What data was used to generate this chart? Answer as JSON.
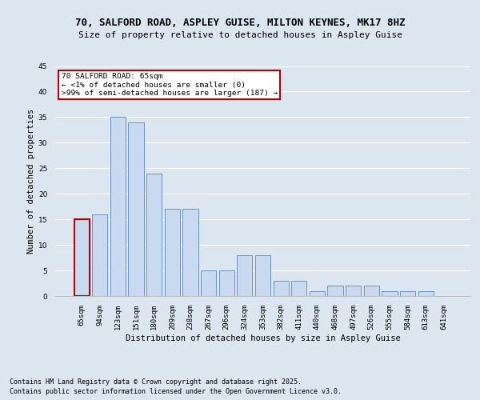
{
  "title1": "70, SALFORD ROAD, ASPLEY GUISE, MILTON KEYNES, MK17 8HZ",
  "title2": "Size of property relative to detached houses in Aspley Guise",
  "xlabel": "Distribution of detached houses by size in Aspley Guise",
  "ylabel": "Number of detached properties",
  "categories": [
    "65sqm",
    "94sqm",
    "123sqm",
    "151sqm",
    "180sqm",
    "209sqm",
    "238sqm",
    "267sqm",
    "296sqm",
    "324sqm",
    "353sqm",
    "382sqm",
    "411sqm",
    "440sqm",
    "468sqm",
    "497sqm",
    "526sqm",
    "555sqm",
    "584sqm",
    "613sqm",
    "641sqm"
  ],
  "values": [
    15,
    16,
    35,
    34,
    24,
    17,
    17,
    5,
    5,
    8,
    8,
    3,
    3,
    1,
    2,
    2,
    2,
    1,
    1,
    1,
    0
  ],
  "bar_color": "#c9d9f0",
  "bar_edge_color": "#5a8ac6",
  "highlight_index": 0,
  "highlight_edge_color": "#c00000",
  "bg_color": "#dce6f1",
  "annotation_text": "70 SALFORD ROAD: 65sqm\n← <1% of detached houses are smaller (0)\n>99% of semi-detached houses are larger (187) →",
  "annotation_box_color": "white",
  "annotation_border_color": "#c00000",
  "footer1": "Contains HM Land Registry data © Crown copyright and database right 2025.",
  "footer2": "Contains public sector information licensed under the Open Government Licence v3.0.",
  "ylim": [
    0,
    45
  ],
  "yticks": [
    0,
    5,
    10,
    15,
    20,
    25,
    30,
    35,
    40,
    45
  ],
  "title_fontsize": 9,
  "subtitle_fontsize": 8,
  "axis_label_fontsize": 7.5,
  "tick_fontsize": 6.5,
  "annotation_fontsize": 6.8,
  "footer_fontsize": 6.0
}
